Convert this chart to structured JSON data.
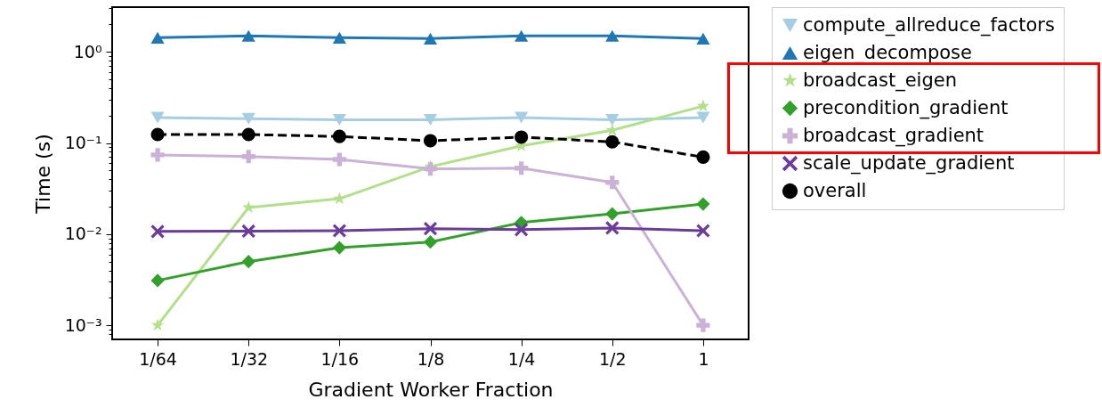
{
  "chart_data": {
    "type": "line",
    "xlabel": "Gradient Worker Fraction",
    "ylabel": "Time (s)",
    "log": "y",
    "categories": [
      "1/64",
      "1/32",
      "1/16",
      "1/8",
      "1/4",
      "1/2",
      "1"
    ],
    "ylim": [
      0.0007,
      3.1
    ],
    "yticks": [
      {
        "value": 0.0008,
        "label": null
      },
      {
        "value": 0.0009,
        "label": null
      },
      {
        "value": 0.001,
        "label": "10⁻³"
      },
      {
        "value": 0.002,
        "label": null
      },
      {
        "value": 0.003,
        "label": null
      },
      {
        "value": 0.004,
        "label": null
      },
      {
        "value": 0.005,
        "label": null
      },
      {
        "value": 0.006,
        "label": null
      },
      {
        "value": 0.007,
        "label": null
      },
      {
        "value": 0.008,
        "label": null
      },
      {
        "value": 0.009,
        "label": null
      },
      {
        "value": 0.01,
        "label": "10⁻²"
      },
      {
        "value": 0.02,
        "label": null
      },
      {
        "value": 0.03,
        "label": null
      },
      {
        "value": 0.04,
        "label": null
      },
      {
        "value": 0.05,
        "label": null
      },
      {
        "value": 0.06,
        "label": null
      },
      {
        "value": 0.07,
        "label": null
      },
      {
        "value": 0.08,
        "label": null
      },
      {
        "value": 0.09,
        "label": null
      },
      {
        "value": 0.1,
        "label": "10⁻¹"
      },
      {
        "value": 0.2,
        "label": null
      },
      {
        "value": 0.3,
        "label": null
      },
      {
        "value": 0.4,
        "label": null
      },
      {
        "value": 0.5,
        "label": null
      },
      {
        "value": 0.6,
        "label": null
      },
      {
        "value": 0.7,
        "label": null
      },
      {
        "value": 0.8,
        "label": null
      },
      {
        "value": 0.9,
        "label": null
      },
      {
        "value": 1,
        "label": "10⁰"
      },
      {
        "value": 2,
        "label": null
      },
      {
        "value": 3,
        "label": null
      }
    ],
    "grid": false,
    "legend": "right",
    "series": [
      {
        "name": "compute_allreduce_factors",
        "color": "#a6cee3",
        "marker": "triangle-down",
        "values": [
          0.19,
          0.185,
          0.18,
          0.18,
          0.19,
          0.18,
          0.19
        ]
      },
      {
        "name": "eigen_decompose",
        "color": "#1f78b4",
        "marker": "triangle",
        "values": [
          1.43,
          1.5,
          1.43,
          1.4,
          1.5,
          1.5,
          1.4
        ]
      },
      {
        "name": "broadcast_eigen",
        "color": "#b2df8a",
        "marker": "star",
        "values": [
          0.001,
          0.0196,
          0.0245,
          0.055,
          0.093,
          0.138,
          0.254
        ]
      },
      {
        "name": "precondition_gradient",
        "color": "#33a02c",
        "marker": "diamond",
        "values": [
          0.0031,
          0.005,
          0.0071,
          0.0082,
          0.0134,
          0.0167,
          0.0214
        ]
      },
      {
        "name": "broadcast_gradient",
        "color": "#cab2d6",
        "marker": "plus",
        "values": [
          0.074,
          0.071,
          0.066,
          0.052,
          0.053,
          0.037,
          0.001
        ]
      },
      {
        "name": "scale_update_gradient",
        "color": "#6a3d9a",
        "marker": "cross",
        "values": [
          0.0107,
          0.0108,
          0.0109,
          0.0115,
          0.0112,
          0.0117,
          0.0109
        ]
      },
      {
        "name": "overall",
        "color": "#000000",
        "marker": "circle",
        "line_style": "dashed",
        "values": [
          0.124,
          0.124,
          0.118,
          0.106,
          0.116,
          0.103,
          0.07
        ]
      }
    ]
  }
}
